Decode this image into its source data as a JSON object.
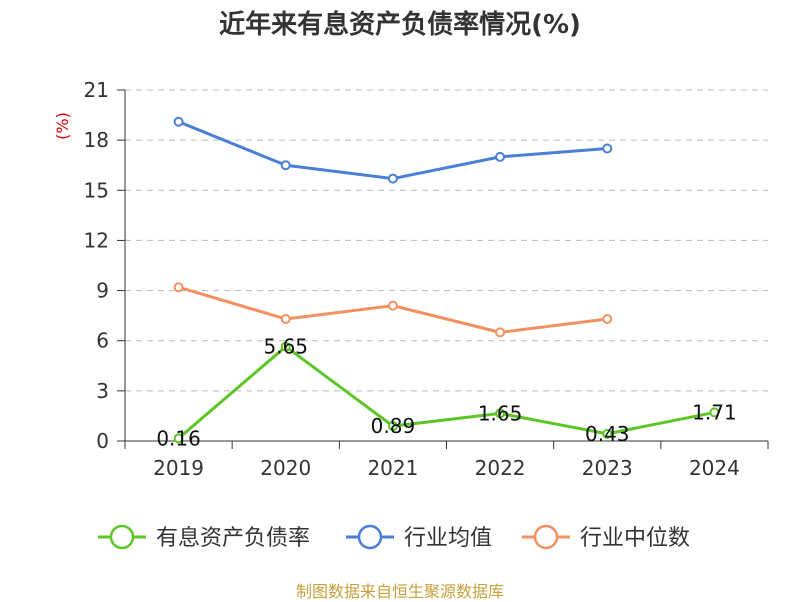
{
  "title": "近年来有息资产负债率情况(%)",
  "footer": "制图数据来自恒生聚源数据库",
  "colors": {
    "series_0": "#5dc626",
    "series_1": "#4a7fd8",
    "series_2": "#f39060",
    "grid": "#bbbbbb",
    "axis": "#333333",
    "ylabel": "#d40000"
  },
  "chart_data": {
    "type": "line",
    "title": "近年来有息资产负债率情况(%)",
    "ylabel": "(%)",
    "xlabel": "",
    "categories": [
      "2019",
      "2020",
      "2021",
      "2022",
      "2023",
      "2024"
    ],
    "yticks": [
      0,
      3,
      6,
      9,
      12,
      15,
      18,
      21
    ],
    "ylim": [
      0,
      21
    ],
    "grid": "horizontal dashed",
    "legend_position": "bottom",
    "series": [
      {
        "name": "有息资产负债率",
        "values": [
          0.16,
          5.65,
          0.89,
          1.65,
          0.43,
          1.71
        ],
        "data_labels": [
          "0.16",
          "5.65",
          "0.89",
          "1.65",
          "0.43",
          "1.71"
        ]
      },
      {
        "name": "行业均值",
        "values": [
          19.1,
          16.5,
          15.7,
          17.0,
          17.5,
          null
        ]
      },
      {
        "name": "行业中位数",
        "values": [
          9.2,
          7.3,
          8.1,
          6.5,
          7.3,
          null
        ]
      }
    ]
  }
}
